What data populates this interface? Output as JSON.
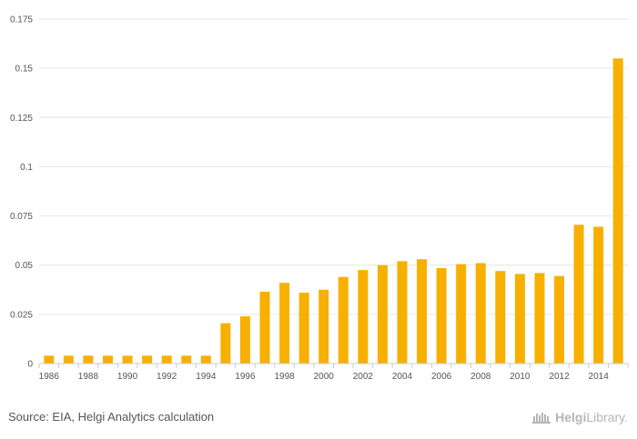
{
  "chart_data": {
    "type": "bar",
    "categories": [
      "1986",
      "1987",
      "1988",
      "1989",
      "1990",
      "1991",
      "1992",
      "1993",
      "1994",
      "1995",
      "1996",
      "1997",
      "1998",
      "1999",
      "2000",
      "2001",
      "2002",
      "2003",
      "2004",
      "2005",
      "2006",
      "2007",
      "2008",
      "2009",
      "2010",
      "2011",
      "2012",
      "2013",
      "2014",
      "2015"
    ],
    "values": [
      0.004,
      0.004,
      0.004,
      0.004,
      0.004,
      0.004,
      0.004,
      0.004,
      0.004,
      0.0205,
      0.024,
      0.0365,
      0.041,
      0.036,
      0.0375,
      0.044,
      0.0475,
      0.05,
      0.052,
      0.053,
      0.0485,
      0.0505,
      0.051,
      0.047,
      0.0455,
      0.046,
      0.0445,
      0.0705,
      0.0695,
      0.155
    ],
    "x_tick_labels": [
      "1986",
      "1988",
      "1990",
      "1992",
      "1994",
      "1996",
      "1998",
      "2000",
      "2002",
      "2004",
      "2006",
      "2008",
      "2010",
      "2012",
      "2014"
    ],
    "y_ticks": [
      0,
      0.025,
      0.05,
      0.075,
      0.1,
      0.125,
      0.15,
      0.175
    ],
    "y_tick_labels": [
      "0",
      "0.025",
      "0.05",
      "0.075",
      "0.1",
      "0.125",
      "0.15",
      "0.175"
    ],
    "ylim": [
      0,
      0.175
    ],
    "title": "",
    "xlabel": "",
    "ylabel": "",
    "grid": true,
    "bar_color": "#f7b000"
  },
  "footer": {
    "source": "Source: EIA, Helgi Analytics calculation",
    "brand_name": "Helgi",
    "brand_suffix": "Library."
  },
  "icons": {
    "brand_logo": "helgi-library-logo-icon"
  }
}
